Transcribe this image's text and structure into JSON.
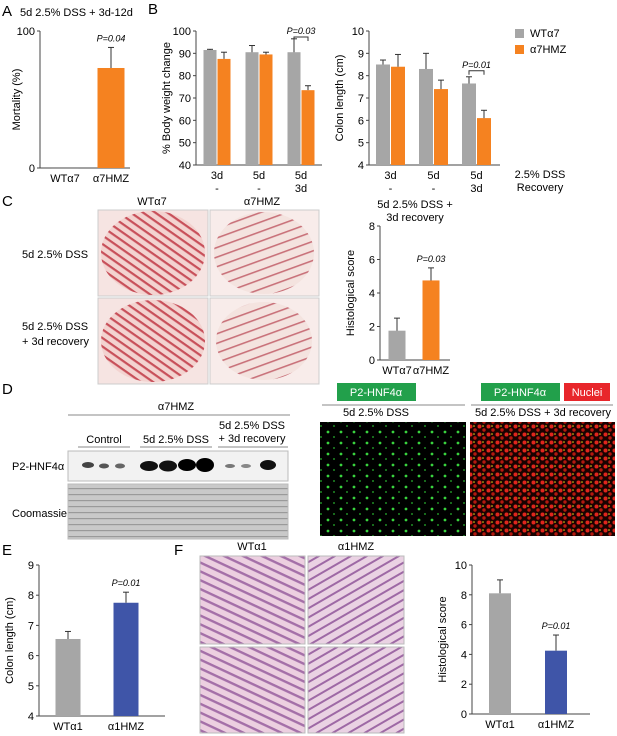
{
  "panels": {
    "A": {
      "letter": "A",
      "title": "5d 2.5% DSS + 3d-12d"
    },
    "B": {
      "letter": "B",
      "legend": [
        "WTα7",
        "α7HMZ"
      ],
      "treatment_label": "2.5% DSS",
      "recovery_label": "Recovery"
    },
    "C": {
      "letter": "C",
      "col_labels": [
        "WTα7",
        "α7HMZ"
      ],
      "row_labels": [
        [
          "5d 2.5% DSS"
        ],
        [
          "5d 2.5% DSS",
          "+ 3d recovery"
        ]
      ],
      "chart_title": [
        "5d 2.5% DSS +",
        "3d recovery"
      ]
    },
    "D": {
      "letter": "D",
      "blot_title": "α7HMZ",
      "groups": [
        "Control",
        "5d 2.5% DSS",
        "5d 2.5% DSS",
        "+ 3d recovery"
      ],
      "row_labels": [
        "P2-HNF4α",
        "Coomassie"
      ],
      "if_tag_left": "P2-HNF4α",
      "if_tag_mid": "P2-HNF4α",
      "if_tag_right": "Nuclei",
      "if_cond_left": "5d 2.5% DSS",
      "if_cond_right": "5d 2.5% DSS + 3d recovery"
    },
    "E": {
      "letter": "E"
    },
    "F": {
      "letter": "F",
      "col_labels": [
        "WTα1",
        "α1HMZ"
      ]
    }
  },
  "colors": {
    "grey": "#a6a6a6",
    "orange": "#f58220",
    "blue": "#3f55a8",
    "green": "#22a04b",
    "red": "#e8262b"
  },
  "chart_data": [
    {
      "id": "A",
      "type": "bar",
      "categories": [
        "WTα7",
        "α7HMZ"
      ],
      "values": [
        0,
        73
      ],
      "errors": [
        0,
        15
      ],
      "colors": [
        "grey",
        "orange"
      ],
      "ylabel": "Mortality (%)",
      "ylim": [
        0,
        100
      ],
      "yticks": [
        0,
        100
      ],
      "annotation": "P=0.04"
    },
    {
      "id": "B1",
      "type": "bar",
      "categories": [
        [
          "3d",
          "-"
        ],
        [
          "5d",
          "-"
        ],
        [
          "5d",
          "3d"
        ]
      ],
      "series": [
        {
          "values": [
            91.5,
            90.5,
            90.5
          ],
          "errors": [
            0.3,
            3,
            6
          ]
        },
        {
          "values": [
            87.5,
            89.5,
            73.5
          ],
          "errors": [
            3,
            1,
            2
          ]
        }
      ],
      "ylabel": "% Body weight change",
      "ylim": [
        40,
        100
      ],
      "yticks": [
        40,
        50,
        60,
        70,
        80,
        90,
        100
      ],
      "annotation": "P=0.03"
    },
    {
      "id": "B2",
      "type": "bar",
      "categories": [
        [
          "3d",
          "-"
        ],
        [
          "5d",
          "-"
        ],
        [
          "5d",
          "3d"
        ]
      ],
      "series": [
        {
          "name": "WTα7",
          "values": [
            8.5,
            8.3,
            7.65
          ],
          "errors": [
            0.2,
            0.7,
            0.3
          ]
        },
        {
          "name": "α7HMZ",
          "values": [
            8.4,
            7.4,
            6.1
          ],
          "errors": [
            0.55,
            0.4,
            0.35
          ]
        }
      ],
      "ylabel": "Colon length (cm)",
      "ylim": [
        4,
        10
      ],
      "yticks": [
        4,
        5,
        6,
        7,
        8,
        9,
        10
      ],
      "annotation": "P=0.01"
    },
    {
      "id": "C",
      "type": "bar",
      "categories": [
        "WTα7",
        "α7HMZ"
      ],
      "values": [
        1.75,
        4.75
      ],
      "errors": [
        0.75,
        0.75
      ],
      "colors": [
        "grey",
        "orange"
      ],
      "ylabel": "Histological score",
      "ylim": [
        0,
        8
      ],
      "yticks": [
        0,
        2,
        4,
        6,
        8
      ],
      "annotation": "P=0.03"
    },
    {
      "id": "E",
      "type": "bar",
      "categories": [
        "WTα1",
        "α1HMZ"
      ],
      "values": [
        6.55,
        7.75
      ],
      "errors": [
        0.25,
        0.35
      ],
      "colors": [
        "grey",
        "blue"
      ],
      "ylabel": "Colon length (cm)",
      "ylim": [
        4,
        9
      ],
      "yticks": [
        4,
        5,
        6,
        7,
        8,
        9
      ],
      "annotation": "P=0.01"
    },
    {
      "id": "F",
      "type": "bar",
      "categories": [
        "WTα1",
        "α1HMZ"
      ],
      "values": [
        8.1,
        4.25
      ],
      "errors": [
        0.9,
        1.05
      ],
      "colors": [
        "grey",
        "blue"
      ],
      "ylabel": "Histological score",
      "ylim": [
        0,
        10
      ],
      "yticks": [
        0,
        2,
        4,
        6,
        8,
        10
      ],
      "annotation": "P=0.01"
    }
  ]
}
